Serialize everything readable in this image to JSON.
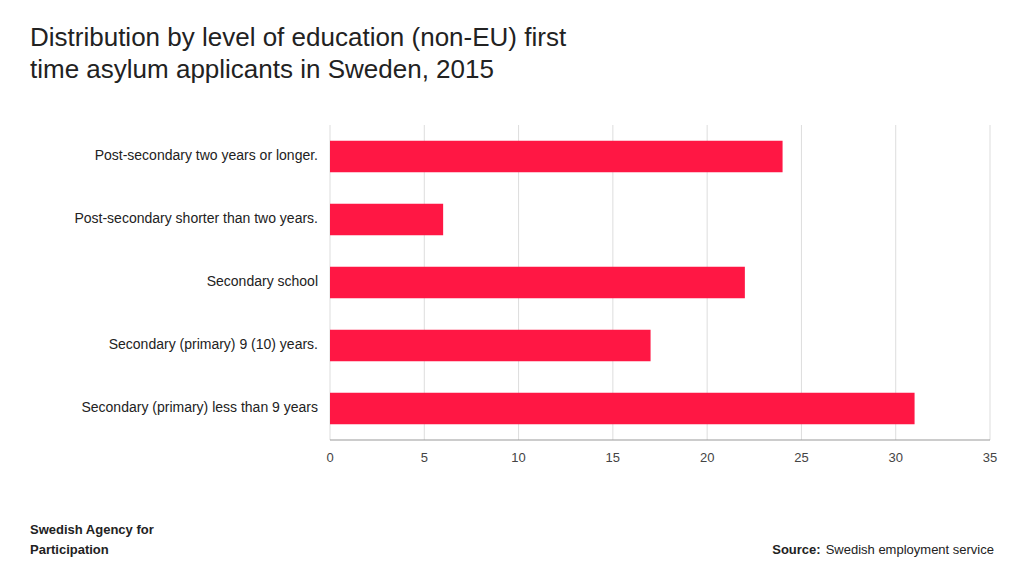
{
  "chart_data": {
    "type": "bar",
    "orientation": "horizontal",
    "title": "Distribution by level of education (non-EU) first\ntime asylum applicants in Sweden, 2015",
    "categories": [
      "Secondary (primary) less than 9 years",
      "Secondary (primary) 9 (10) years.",
      "Secondary school",
      "Post-secondary shorter than two years.",
      "Post-secondary two years or longer."
    ],
    "values": [
      31.0,
      17.0,
      22.0,
      6.0,
      24.0
    ],
    "color": "#FF1744",
    "xlim": [
      0,
      35.0
    ],
    "xticks": [
      0,
      5,
      10,
      15,
      20,
      25,
      30,
      35
    ],
    "grid": true,
    "annotations": [
      "Source:",
      "Swedish employment service",
      "Swedish Agency for",
      "Participation"
    ]
  }
}
